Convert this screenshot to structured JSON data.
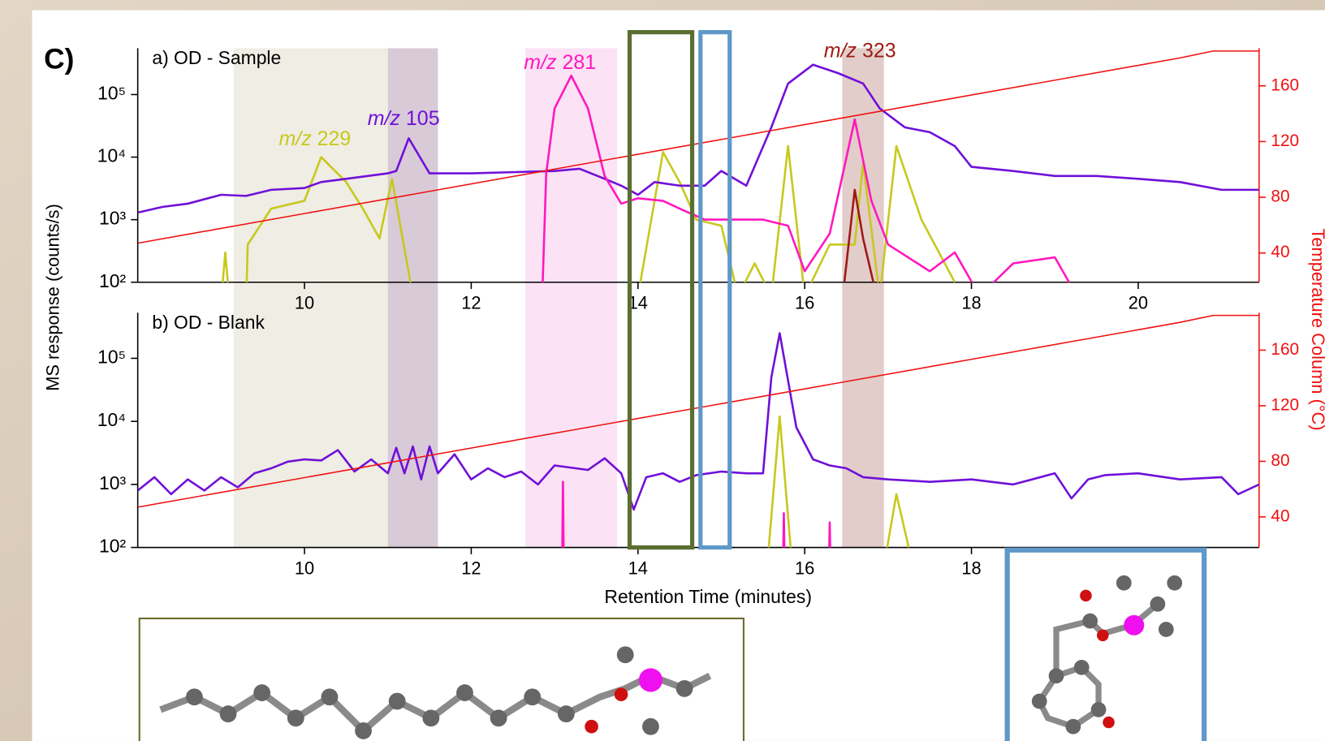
{
  "figure_label": "C)",
  "ylabel": "MS response (counts/s)",
  "xlabel": "Retention Time (minutes)",
  "y2label": "Temperature Column (°C)",
  "highlights": [
    {
      "x": [
        9.15,
        11.0
      ],
      "color": "#efede4"
    },
    {
      "x": [
        11.0,
        11.6
      ],
      "color": "#d9cad8"
    },
    {
      "x": [
        12.65,
        13.75
      ],
      "color": "#fbe2f5"
    },
    {
      "x": [
        16.45,
        16.95
      ],
      "color": "#e2cdca"
    }
  ],
  "boxes": [
    {
      "x": [
        13.9,
        14.65
      ],
      "color": "#5a6e32"
    },
    {
      "x": [
        14.75,
        15.1
      ],
      "color": "#5f98c8"
    }
  ],
  "chart_data": [
    {
      "type": "line",
      "title": "a) OD - Sample",
      "log_y": true,
      "xlim": [
        8,
        21.45
      ],
      "xticks": [
        10,
        12,
        14,
        16,
        18,
        20
      ],
      "ylim": [
        100,
        550000
      ],
      "yticks": [
        {
          "value": 100,
          "label": "10²"
        },
        {
          "value": 1000,
          "label": "10³"
        },
        {
          "value": 10000,
          "label": "10⁴"
        },
        {
          "value": 100000,
          "label": "10⁵"
        }
      ],
      "y2lim": [
        19,
        187
      ],
      "y2ticks": [
        40,
        80,
        120,
        160
      ],
      "series": [
        {
          "name": "m/z 229",
          "color": "#c8c81e",
          "x": [
            9.0,
            9.05,
            9.1,
            9.3,
            9.32,
            9.6,
            10.0,
            10.2,
            10.5,
            10.7,
            10.9,
            11.05,
            11.3,
            14.0,
            14.3,
            14.5,
            14.7,
            15.0,
            15.2,
            15.4,
            15.6,
            15.8,
            16.0,
            16.3,
            16.6,
            16.7,
            16.9,
            17.1,
            17.4,
            17.8
          ],
          "values": [
            50,
            300,
            50,
            50,
            400,
            1500,
            2000,
            10000,
            4000,
            1500,
            500,
            4500,
            60,
            60,
            12000,
            4000,
            1000,
            800,
            60,
            200,
            60,
            15000,
            60,
            400,
            400,
            8000,
            60,
            15000,
            1000,
            100
          ]
        },
        {
          "name": "m/z 105",
          "color": "#7010d8",
          "x": [
            8,
            8.3,
            8.6,
            9,
            9.3,
            9.6,
            10,
            10.2,
            10.5,
            11,
            11.1,
            11.25,
            11.5,
            12,
            13,
            13.3,
            13.6,
            13.8,
            14,
            14.2,
            14.5,
            14.8,
            15,
            15.3,
            15.6,
            15.8,
            16.1,
            16.4,
            16.7,
            16.9,
            17.2,
            17.5,
            17.8,
            18,
            18.5,
            19,
            19.5,
            20,
            20.5,
            21,
            21.45
          ],
          "values": [
            1300,
            1600,
            1800,
            2500,
            2400,
            3000,
            3200,
            4000,
            4500,
            5500,
            6000,
            20000,
            5500,
            5500,
            6000,
            6500,
            4500,
            3500,
            2500,
            4000,
            3500,
            3500,
            6000,
            3500,
            30000,
            150000,
            300000,
            220000,
            150000,
            60000,
            30000,
            25000,
            15000,
            7000,
            6000,
            5000,
            5000,
            4500,
            4000,
            3000,
            3000
          ]
        },
        {
          "name": "m/z 281",
          "color": "#ff18c0",
          "x": [
            12.85,
            12.9,
            13.0,
            13.2,
            13.4,
            13.6,
            13.8,
            14.0,
            14.3,
            14.5,
            14.8,
            15.5,
            15.8,
            16.0,
            16.3,
            16.6,
            16.8,
            17.0,
            17.5,
            17.8,
            18.1,
            18.5,
            19.0,
            19.3
          ],
          "values": [
            50,
            5500,
            60000,
            200000,
            60000,
            5000,
            1800,
            2200,
            2000,
            1500,
            1000,
            1000,
            800,
            150,
            600,
            40000,
            2000,
            400,
            150,
            300,
            60,
            200,
            250,
            50
          ]
        },
        {
          "name": "m/z 323",
          "color": "#9e1a14",
          "x": [
            16.45,
            16.6,
            16.7,
            16.85
          ],
          "values": [
            50,
            3000,
            500,
            70
          ]
        },
        {
          "name": "Temperature",
          "axis": "y2",
          "color": "#f01010",
          "x": [
            8,
            20.5,
            20.9,
            21.45
          ],
          "values": [
            47,
            180,
            185,
            185
          ]
        }
      ]
    },
    {
      "type": "line",
      "title": "b) OD - Blank",
      "log_y": true,
      "xlim": [
        8,
        21.45
      ],
      "xticks": [
        10,
        12,
        14,
        16,
        18
      ],
      "ylim": [
        100,
        530000
      ],
      "yticks": [
        {
          "value": 100,
          "label": "10²"
        },
        {
          "value": 1000,
          "label": "10³"
        },
        {
          "value": 10000,
          "label": "10⁴"
        },
        {
          "value": 100000,
          "label": "10⁵"
        }
      ],
      "y2lim": [
        18,
        187
      ],
      "y2ticks": [
        40,
        80,
        120,
        160
      ],
      "series": [
        {
          "name": "m/z 229",
          "color": "#c8c81e",
          "x": [
            15.55,
            15.7,
            15.85,
            16.95,
            17.1,
            17.3
          ],
          "values": [
            50,
            12000,
            50,
            50,
            700,
            50
          ]
        },
        {
          "name": "m/z 105",
          "color": "#7010d8",
          "x": [
            8,
            8.2,
            8.4,
            8.6,
            8.8,
            9,
            9.2,
            9.4,
            9.6,
            9.8,
            10,
            10.2,
            10.4,
            10.6,
            10.8,
            11,
            11.1,
            11.2,
            11.3,
            11.4,
            11.5,
            11.6,
            11.8,
            12,
            12.2,
            12.4,
            12.6,
            12.8,
            13,
            13.4,
            13.6,
            13.8,
            13.95,
            14.1,
            14.3,
            14.5,
            14.7,
            15,
            15.3,
            15.5,
            15.6,
            15.7,
            15.9,
            16.1,
            16.3,
            16.5,
            16.7,
            17,
            17.5,
            18,
            18.5,
            19,
            19.2,
            19.4,
            19.6,
            20,
            20.5,
            21,
            21.2,
            21.45
          ],
          "values": [
            800,
            1300,
            700,
            1200,
            800,
            1300,
            900,
            1500,
            1800,
            2300,
            2500,
            2400,
            3500,
            1600,
            2500,
            1500,
            3800,
            1500,
            4000,
            1200,
            4000,
            1500,
            3000,
            1200,
            1800,
            1300,
            1600,
            1000,
            2000,
            1700,
            2600,
            1500,
            400,
            1300,
            1500,
            1100,
            1400,
            1600,
            1500,
            1500,
            50000,
            250000,
            8000,
            2500,
            2000,
            1800,
            1300,
            1200,
            1100,
            1200,
            1000,
            1500,
            600,
            1200,
            1400,
            1500,
            1200,
            1300,
            700,
            1000
          ]
        },
        {
          "name": "m/z 281",
          "color": "#ff18c0",
          "x": [
            13.09,
            13.1,
            13.11,
            15.74,
            15.75,
            15.76,
            16.29,
            16.3,
            16.31
          ],
          "values": [
            50,
            1100,
            50,
            50,
            350,
            50,
            50,
            250,
            50
          ]
        },
        {
          "name": "Temperature",
          "axis": "y2",
          "color": "#f01010",
          "x": [
            8,
            20.5,
            20.9,
            21.45
          ],
          "values": [
            47,
            180,
            185,
            185
          ]
        }
      ]
    }
  ]
}
